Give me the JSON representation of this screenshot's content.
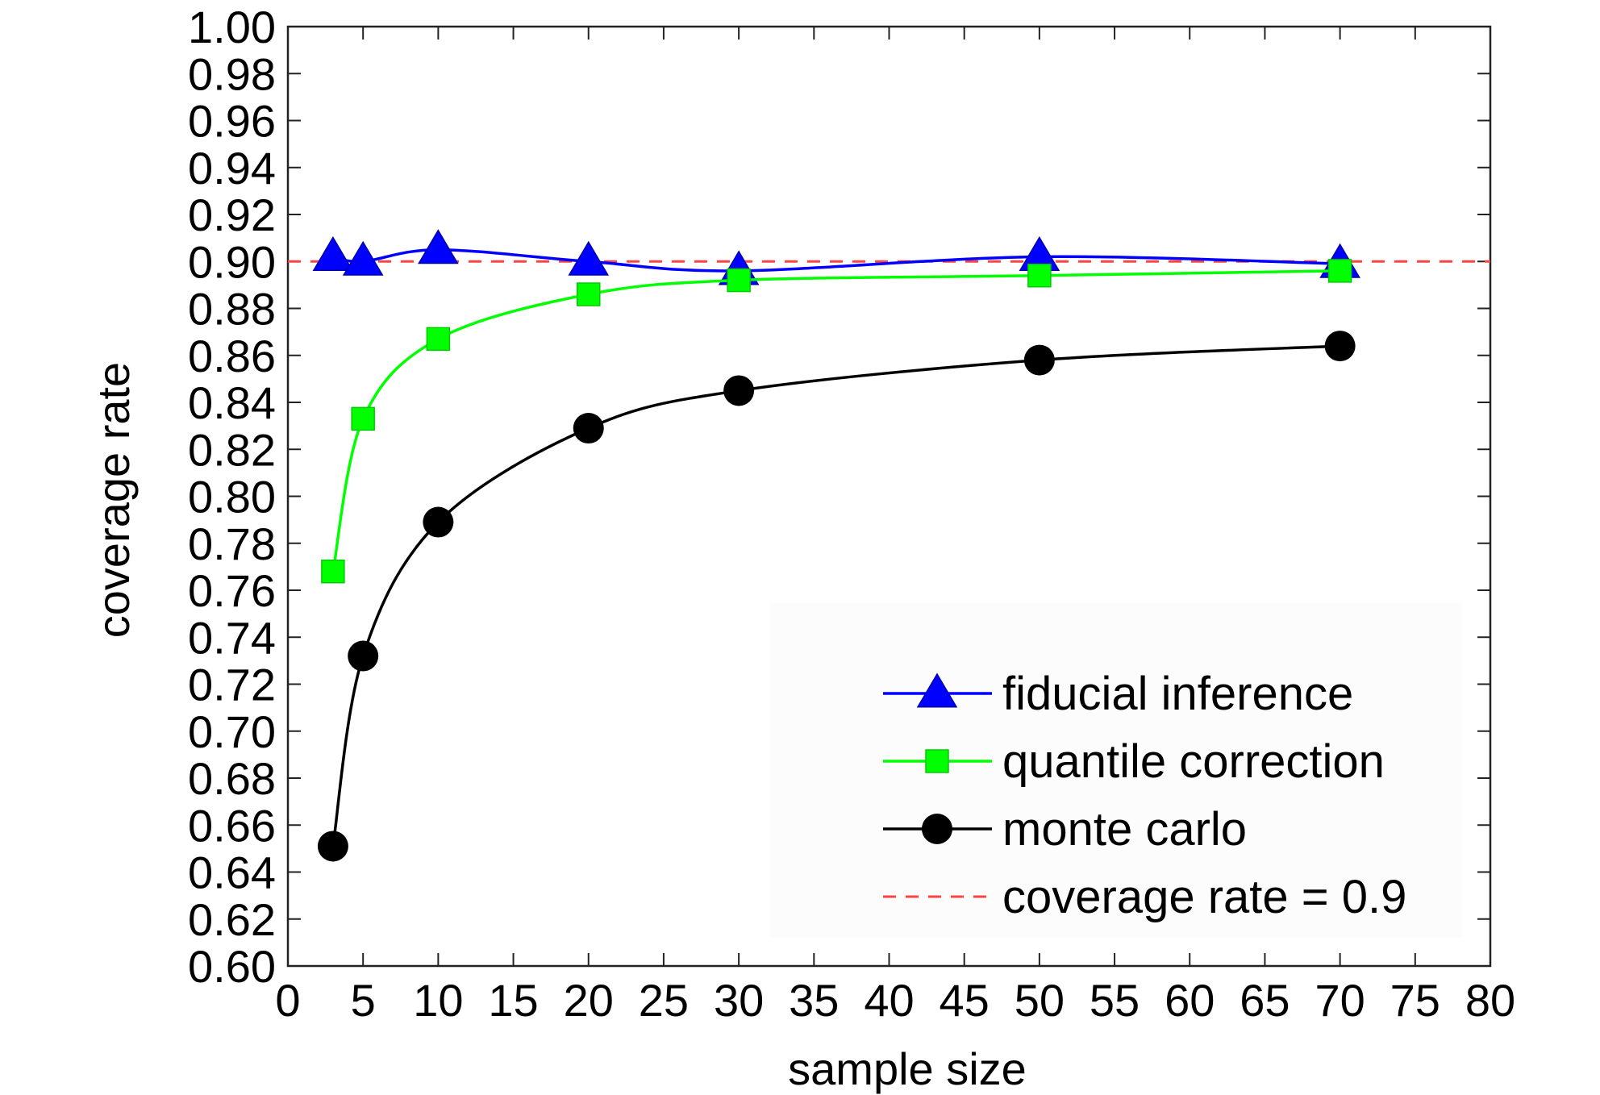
{
  "chart_data": {
    "type": "line",
    "xlabel": "sample size",
    "ylabel": "coverage rate",
    "xlim": [
      0,
      80
    ],
    "ylim": [
      0.6,
      1.0
    ],
    "x_ticks": [
      "0",
      "5",
      "10",
      "15",
      "20",
      "25",
      "30",
      "35",
      "40",
      "45",
      "50",
      "55",
      "60",
      "65",
      "70",
      "75",
      "80"
    ],
    "y_ticks": [
      "0.60",
      "0.62",
      "0.64",
      "0.66",
      "0.68",
      "0.70",
      "0.72",
      "0.74",
      "0.76",
      "0.78",
      "0.80",
      "0.82",
      "0.84",
      "0.86",
      "0.88",
      "0.90",
      "0.92",
      "0.94",
      "0.96",
      "0.98",
      "1.00"
    ],
    "grid": false,
    "legend_position": "bottom-right",
    "x": [
      3,
      5,
      10,
      20,
      30,
      50,
      70
    ],
    "series": [
      {
        "name": "fiducial inference",
        "color": "#0000ff",
        "marker": "triangle",
        "values": [
          0.902,
          0.9,
          0.905,
          0.9,
          0.896,
          0.902,
          0.899
        ]
      },
      {
        "name": "quantile correction",
        "color": "#00ff00",
        "marker": "square",
        "values": [
          0.768,
          0.833,
          0.867,
          0.886,
          0.892,
          0.894,
          0.896
        ]
      },
      {
        "name": "monte carlo",
        "color": "#000000",
        "marker": "circle",
        "values": [
          0.651,
          0.732,
          0.789,
          0.829,
          0.845,
          0.858,
          0.864
        ]
      }
    ],
    "reference_line": {
      "name": "coverage rate = 0.9",
      "y": 0.9,
      "color": "#ff4444",
      "style": "dashed"
    }
  }
}
